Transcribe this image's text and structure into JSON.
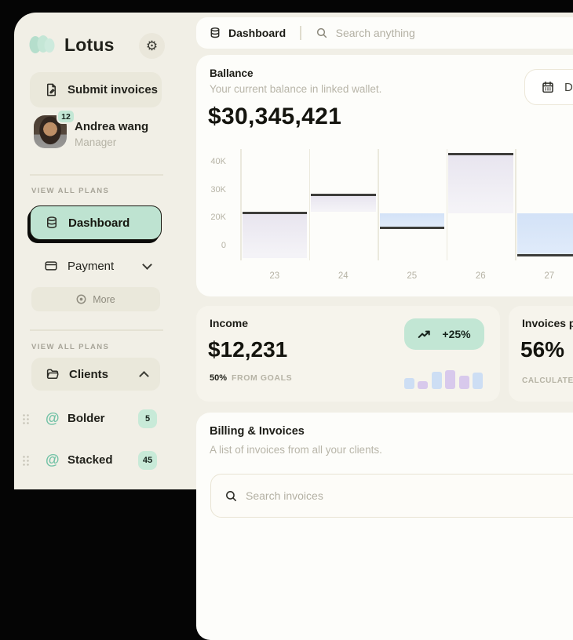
{
  "sidebar": {
    "brand": "Lotus",
    "submit_button": "Submit invoices",
    "profile": {
      "name": "Andrea wang",
      "role": "Manager",
      "badge": "12"
    },
    "section1_label": "VIEW ALL PLANS",
    "section2_label": "VIEW ALL PLANS",
    "nav": {
      "dashboard": "Dashboard",
      "payment": "Payment",
      "more": "More",
      "clients": "Clients"
    },
    "clients": [
      {
        "name": "Bolder",
        "badge": "5"
      },
      {
        "name": "Stacked",
        "badge": "45"
      }
    ]
  },
  "topbar": {
    "tab": "Dashboard",
    "search_placeholder": "Search anything"
  },
  "balance": {
    "title": "Ballance",
    "subtitle": "Your current balance in linked wallet.",
    "amount": "$30,345,421",
    "date_button": "Date"
  },
  "income": {
    "title": "Income",
    "amount": "$12,231",
    "trend_badge": "+25%",
    "goal_pct": "50%",
    "goal_label": "FROM GOALS"
  },
  "invoices_paid": {
    "title": "Invoices paid",
    "value": "56%",
    "footnote": "CALCULATED IN TOTAL"
  },
  "billing": {
    "title": "Billing & Invoices",
    "subtitle": "A list of invoices from all your clients.",
    "search_placeholder": "Search invoices"
  },
  "colors": {
    "accent_mint": "#bee3d1",
    "badge_mint": "#c8ead8",
    "bar_gray": "#e8e5ef",
    "bar_blue": "#d3e2f7",
    "mini_blue": "#cddef4",
    "mini_purple": "#d8c9ec",
    "bar_edge": "#3d3d3a",
    "bg_beige": "#f1efe6",
    "card_white": "#fdfdfa"
  },
  "chart_data": [
    {
      "name": "balance-waterfall",
      "type": "bar",
      "subtype": "waterfall",
      "title": "Ballance",
      "unit": "thousand USD",
      "categories": [
        "23",
        "24",
        "25",
        "26",
        "27"
      ],
      "bars": [
        {
          "label": "23",
          "from": -9,
          "to": 22,
          "color": "gray",
          "edge": "top"
        },
        {
          "label": "24",
          "from": 22,
          "to": 28.5,
          "color": "gray",
          "edge": "top"
        },
        {
          "label": "25",
          "from": 12,
          "to": 21.5,
          "color": "blue",
          "edge": "bottom"
        },
        {
          "label": "26",
          "from": 21.5,
          "to": 43,
          "color": "gray",
          "edge": "top"
        },
        {
          "label": "27",
          "from": -8,
          "to": 21.5,
          "color": "blue",
          "edge": "bottom"
        }
      ],
      "yticks": [
        {
          "label": "0",
          "value": 0
        },
        {
          "label": "20K",
          "value": 20
        },
        {
          "label": "30K",
          "value": 30
        },
        {
          "label": "40K",
          "value": 40
        }
      ],
      "grid": "vertical",
      "legend": "none"
    },
    {
      "name": "income-mini-bars",
      "type": "bar",
      "values": [
        14,
        10,
        22,
        24,
        17,
        21
      ],
      "colors": [
        "blue",
        "purple",
        "blue",
        "purple",
        "purple",
        "blue"
      ]
    }
  ]
}
